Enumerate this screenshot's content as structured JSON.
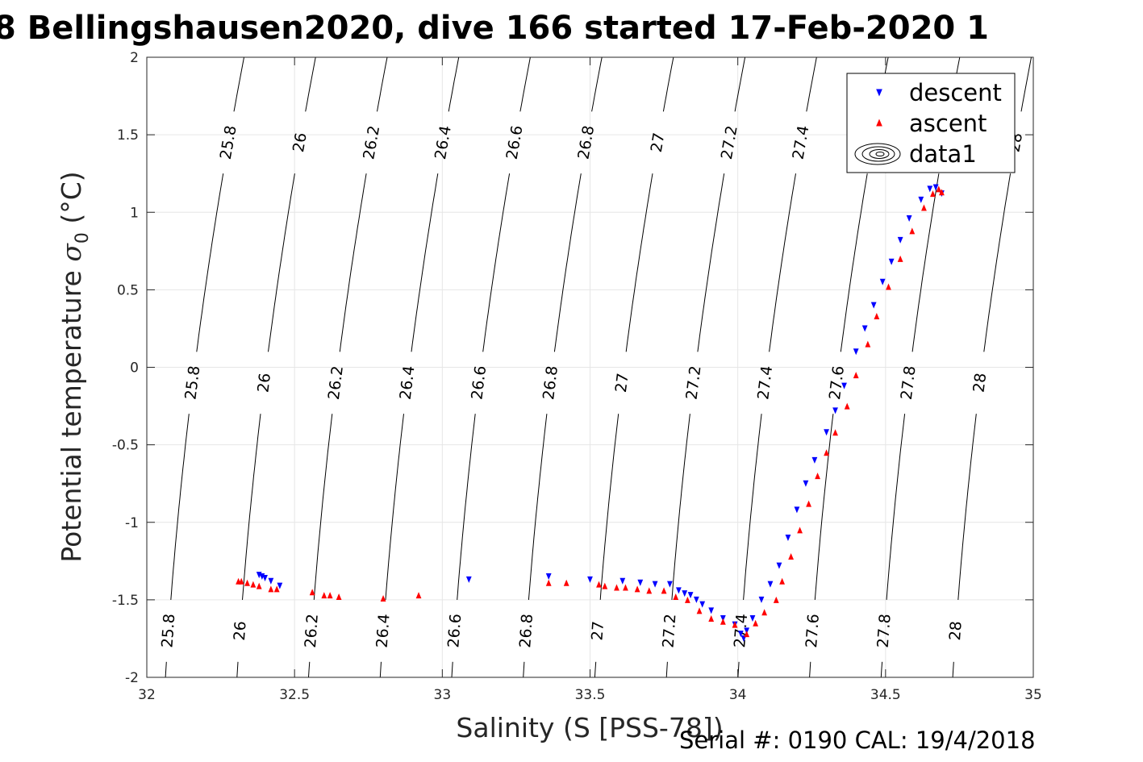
{
  "chart_data": {
    "type": "scatter",
    "title": "8 Bellingshausen2020, dive 166 started 17-Feb-2020 1",
    "xlabel": "Salinity (S [PSS-78])",
    "ylabel_main": "Potential temperature ",
    "ylabel_symbol": "σ",
    "ylabel_sub": "0",
    "ylabel_unit": " (°C)",
    "xlim": [
      32,
      35
    ],
    "ylim": [
      -2,
      2
    ],
    "xticks": [
      32,
      32.5,
      33,
      33.5,
      34,
      34.5,
      35
    ],
    "xtick_labels": [
      "32",
      "32.5",
      "33",
      "33.5",
      "34",
      "34.5",
      "35"
    ],
    "yticks": [
      -2,
      -1.5,
      -1,
      -0.5,
      0,
      0.5,
      1,
      1.5,
      2
    ],
    "ytick_labels": [
      "-2",
      "-1.5",
      "-1",
      "-0.5",
      "0",
      "0.5",
      "1",
      "1.5",
      "2"
    ],
    "grid": true,
    "legend_position": "top-right",
    "colors": {
      "descent": "#0000ff",
      "ascent": "#ff0000",
      "contour": "#000000",
      "grid": "#e6e6e6",
      "axis": "#262626"
    },
    "contours": {
      "levels": [
        25.8,
        26,
        26.2,
        26.4,
        26.6,
        26.8,
        27,
        27.2,
        27.4,
        27.6,
        27.8,
        28
      ],
      "labels": [
        "25.8",
        "26",
        "26.2",
        "26.4",
        "26.6",
        "26.8",
        "27",
        "27.2",
        "27.4",
        "27.6",
        "27.8",
        "28"
      ],
      "label_rows_y": [
        1.45,
        -0.1,
        -1.7
      ]
    },
    "series": [
      {
        "name": "descent",
        "marker": "triangle-down",
        "points": [
          [
            32.38,
            -1.34
          ],
          [
            32.39,
            -1.35
          ],
          [
            32.4,
            -1.36
          ],
          [
            32.42,
            -1.38
          ],
          [
            32.45,
            -1.41
          ],
          [
            33.09,
            -1.37
          ],
          [
            33.36,
            -1.35
          ],
          [
            33.5,
            -1.37
          ],
          [
            33.61,
            -1.38
          ],
          [
            33.67,
            -1.39
          ],
          [
            33.72,
            -1.4
          ],
          [
            33.77,
            -1.4
          ],
          [
            33.8,
            -1.44
          ],
          [
            33.82,
            -1.46
          ],
          [
            33.84,
            -1.47
          ],
          [
            33.86,
            -1.5
          ],
          [
            33.88,
            -1.53
          ],
          [
            33.91,
            -1.57
          ],
          [
            33.95,
            -1.62
          ],
          [
            33.99,
            -1.66
          ],
          [
            34.01,
            -1.72
          ],
          [
            34.02,
            -1.75
          ],
          [
            34.03,
            -1.7
          ],
          [
            34.05,
            -1.62
          ],
          [
            34.08,
            -1.5
          ],
          [
            34.11,
            -1.4
          ],
          [
            34.14,
            -1.28
          ],
          [
            34.17,
            -1.1
          ],
          [
            34.2,
            -0.92
          ],
          [
            34.23,
            -0.75
          ],
          [
            34.26,
            -0.6
          ],
          [
            34.3,
            -0.42
          ],
          [
            34.33,
            -0.28
          ],
          [
            34.36,
            -0.12
          ],
          [
            34.4,
            0.1
          ],
          [
            34.43,
            0.25
          ],
          [
            34.46,
            0.4
          ],
          [
            34.49,
            0.55
          ],
          [
            34.52,
            0.68
          ],
          [
            34.55,
            0.82
          ],
          [
            34.58,
            0.96
          ],
          [
            34.62,
            1.08
          ],
          [
            34.65,
            1.15
          ],
          [
            34.67,
            1.16
          ],
          [
            34.69,
            1.12
          ]
        ]
      },
      {
        "name": "ascent",
        "marker": "triangle-up",
        "points": [
          [
            32.31,
            -1.38
          ],
          [
            32.32,
            -1.38
          ],
          [
            32.34,
            -1.39
          ],
          [
            32.36,
            -1.4
          ],
          [
            32.38,
            -1.41
          ],
          [
            32.42,
            -1.43
          ],
          [
            32.44,
            -1.43
          ],
          [
            32.56,
            -1.45
          ],
          [
            32.6,
            -1.47
          ],
          [
            32.62,
            -1.47
          ],
          [
            32.65,
            -1.48
          ],
          [
            32.8,
            -1.49
          ],
          [
            32.92,
            -1.47
          ],
          [
            33.36,
            -1.39
          ],
          [
            33.42,
            -1.39
          ],
          [
            33.53,
            -1.4
          ],
          [
            33.55,
            -1.41
          ],
          [
            33.59,
            -1.42
          ],
          [
            33.62,
            -1.42
          ],
          [
            33.66,
            -1.43
          ],
          [
            33.7,
            -1.44
          ],
          [
            33.75,
            -1.44
          ],
          [
            33.79,
            -1.48
          ],
          [
            33.83,
            -1.5
          ],
          [
            33.87,
            -1.57
          ],
          [
            33.91,
            -1.62
          ],
          [
            33.95,
            -1.64
          ],
          [
            33.99,
            -1.66
          ],
          [
            34.03,
            -1.72
          ],
          [
            34.06,
            -1.65
          ],
          [
            34.09,
            -1.58
          ],
          [
            34.13,
            -1.5
          ],
          [
            34.15,
            -1.38
          ],
          [
            34.18,
            -1.22
          ],
          [
            34.21,
            -1.05
          ],
          [
            34.24,
            -0.88
          ],
          [
            34.27,
            -0.7
          ],
          [
            34.3,
            -0.55
          ],
          [
            34.33,
            -0.42
          ],
          [
            34.37,
            -0.25
          ],
          [
            34.4,
            -0.05
          ],
          [
            34.44,
            0.15
          ],
          [
            34.47,
            0.33
          ],
          [
            34.51,
            0.52
          ],
          [
            34.55,
            0.7
          ],
          [
            34.59,
            0.88
          ],
          [
            34.63,
            1.03
          ],
          [
            34.66,
            1.12
          ],
          [
            34.68,
            1.15
          ],
          [
            34.69,
            1.13
          ]
        ]
      }
    ],
    "legend": [
      {
        "label": "descent",
        "marker": "triangle-down"
      },
      {
        "label": "ascent",
        "marker": "triangle-up"
      },
      {
        "label": "data1",
        "marker": "contour"
      }
    ]
  },
  "footer": {
    "serial": "Serial #: 0190  CAL: 19/4/2018"
  }
}
